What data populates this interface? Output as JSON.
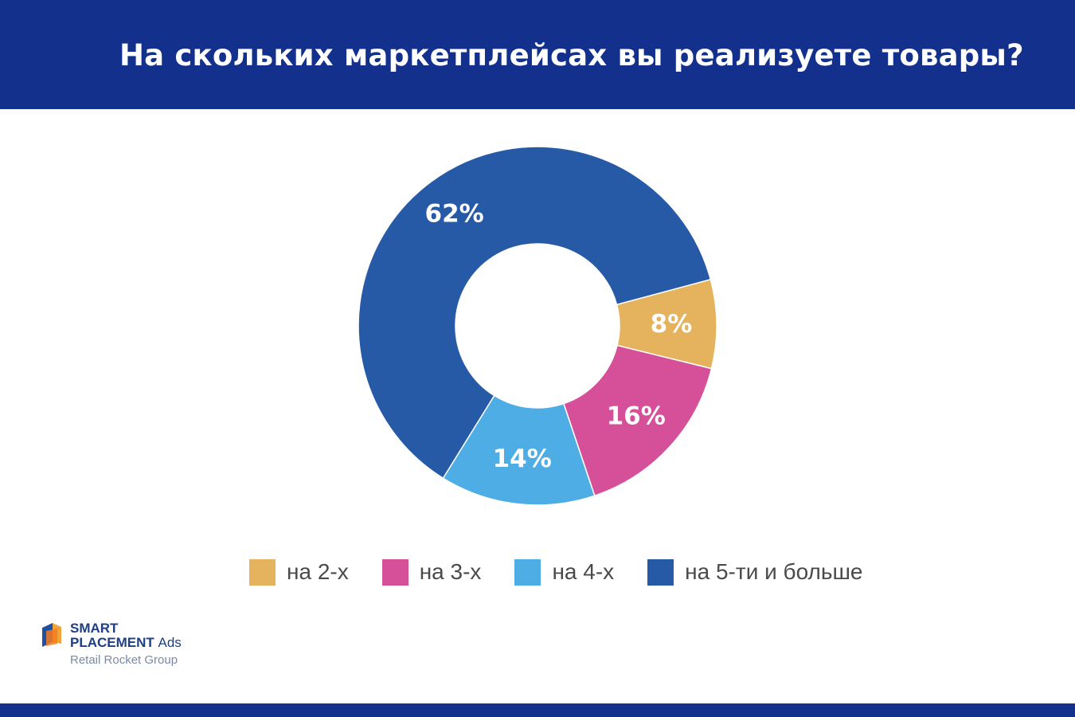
{
  "header": {
    "title": "На скольких маркетплейсах вы реализуете товары?"
  },
  "colors": {
    "header_bg": "#13318c",
    "two": "#e5b25d",
    "three": "#d64f99",
    "four": "#4eade4",
    "five_plus": "#265aa6"
  },
  "chart_data": {
    "type": "pie",
    "donut": true,
    "title": "",
    "categories": [
      "на 2-х",
      "на 3-х",
      "на 4-х",
      "на 5-ти и больше"
    ],
    "values": [
      8,
      16,
      14,
      62
    ],
    "labels": [
      "8%",
      "16%",
      "14%",
      "62%"
    ],
    "unit": "%",
    "legend_position": "bottom"
  },
  "logo": {
    "line1": "SMART",
    "line2_main": "PLACEMENT",
    "line2_suffix": "Ads",
    "line3": "Retail Rocket Group"
  }
}
